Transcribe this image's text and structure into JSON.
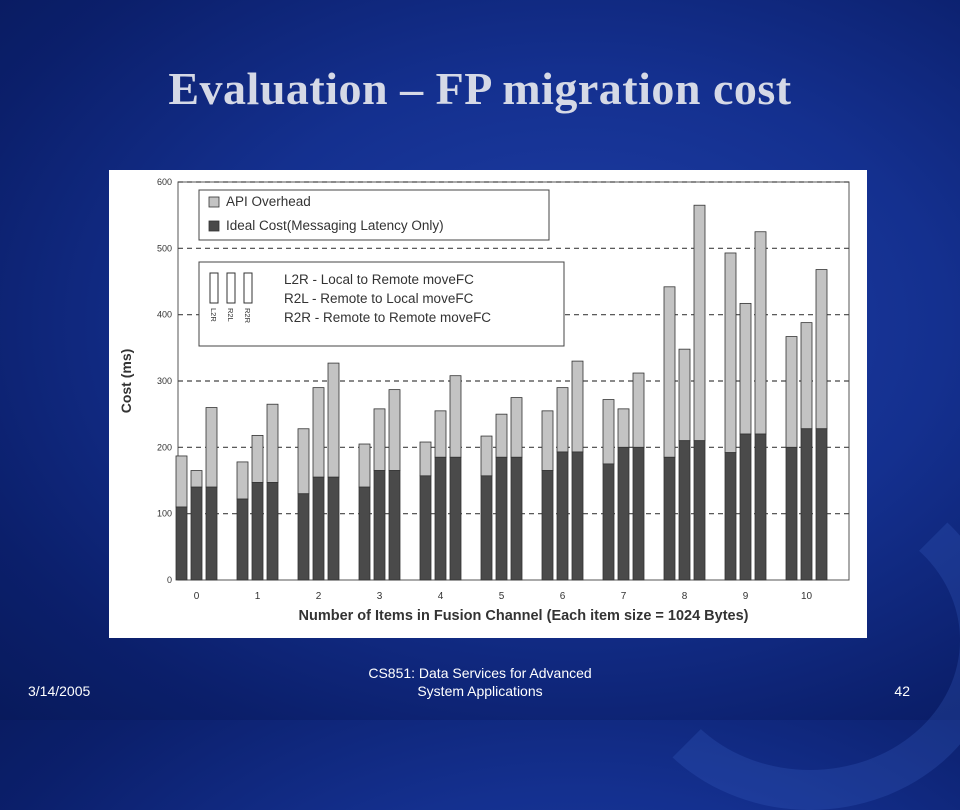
{
  "slide": {
    "title": "Evaluation – FP migration cost",
    "footer_date": "3/14/2005",
    "footer_course_line1": "CS851: Data Services for Advanced",
    "footer_course_line2": "System Applications",
    "page_number": "42"
  },
  "colors": {
    "api_overhead": "#c3c3c3",
    "ideal_cost": "#4a4a4a"
  },
  "chart_data": {
    "type": "bar",
    "stacked": true,
    "title": "",
    "xlabel": "Number of Items in Fusion Channel (Each item size = 1024 Bytes)",
    "ylabel": "Cost (ms)",
    "ylim": [
      0,
      600
    ],
    "yticks": [
      0,
      100,
      200,
      300,
      400,
      500,
      600
    ],
    "grid": "horizontal-dashed",
    "categories": [
      "0",
      "1",
      "2",
      "3",
      "4",
      "5",
      "6",
      "7",
      "8",
      "9",
      "10"
    ],
    "bars_per_category": [
      "L2R",
      "R2L",
      "R2R"
    ],
    "legend_series": [
      {
        "key": "api_overhead",
        "label": "API Overhead"
      },
      {
        "key": "ideal_cost",
        "label": "Ideal Cost(Messaging Latency Only)"
      }
    ],
    "legend_bars": {
      "bar_labels": [
        "L2R",
        "R2L",
        "R2R"
      ],
      "lines": [
        "L2R - Local to Remote moveFC",
        "R2L - Remote to Local moveFC",
        "R2R - Remote to Remote moveFC"
      ]
    },
    "series": [
      {
        "name": "Ideal Cost(Messaging Latency Only)",
        "key": "ideal_cost",
        "values": [
          [
            110,
            140,
            140
          ],
          [
            122,
            147,
            147
          ],
          [
            130,
            155,
            155
          ],
          [
            140,
            165,
            165
          ],
          [
            157,
            185,
            185
          ],
          [
            157,
            185,
            185
          ],
          [
            165,
            193,
            193
          ],
          [
            175,
            200,
            200
          ],
          [
            185,
            210,
            210
          ],
          [
            192,
            220,
            220
          ],
          [
            200,
            228,
            228
          ]
        ]
      },
      {
        "name": "API Overhead",
        "key": "api_overhead",
        "totals": [
          [
            187,
            165,
            260
          ],
          [
            178,
            218,
            265
          ],
          [
            228,
            290,
            327
          ],
          [
            205,
            258,
            287
          ],
          [
            208,
            255,
            308
          ],
          [
            217,
            250,
            275
          ],
          [
            255,
            290,
            330
          ],
          [
            272,
            258,
            312
          ],
          [
            442,
            348,
            565
          ],
          [
            493,
            417,
            525
          ],
          [
            367,
            388,
            468
          ]
        ]
      }
    ]
  }
}
